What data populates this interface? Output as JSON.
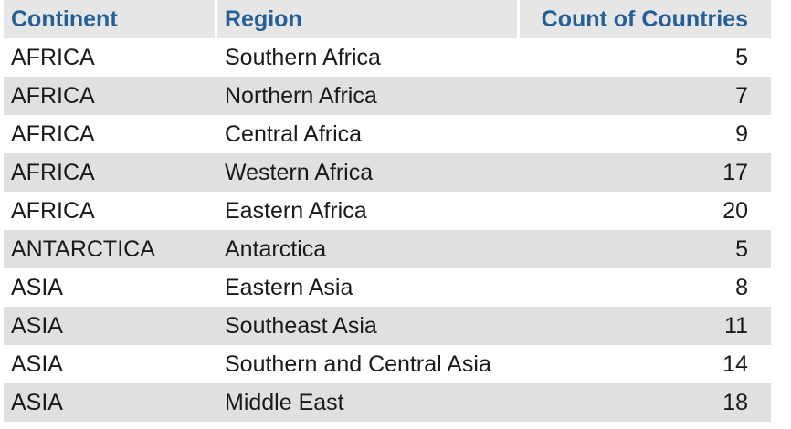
{
  "table": {
    "headers": [
      "Continent",
      "Region",
      "Count of Countries"
    ],
    "rows": [
      {
        "continent": "AFRICA",
        "region": "Southern Africa",
        "count": "5"
      },
      {
        "continent": "AFRICA",
        "region": "Northern Africa",
        "count": "7"
      },
      {
        "continent": "AFRICA",
        "region": "Central Africa",
        "count": "9"
      },
      {
        "continent": "AFRICA",
        "region": "Western Africa",
        "count": "17"
      },
      {
        "continent": "AFRICA",
        "region": "Eastern Africa",
        "count": "20"
      },
      {
        "continent": "ANTARCTICA",
        "region": "Antarctica",
        "count": "5"
      },
      {
        "continent": "ASIA",
        "region": "Eastern Asia",
        "count": "8"
      },
      {
        "continent": "ASIA",
        "region": "Southeast Asia",
        "count": "11"
      },
      {
        "continent": "ASIA",
        "region": "Southern and Central Asia",
        "count": "14"
      },
      {
        "continent": "ASIA",
        "region": "Middle East",
        "count": "18"
      }
    ]
  },
  "colors": {
    "header_text": "#245f96",
    "header_bg": "#e6e6e6",
    "row_alt_bg": "#e0e0e0"
  }
}
